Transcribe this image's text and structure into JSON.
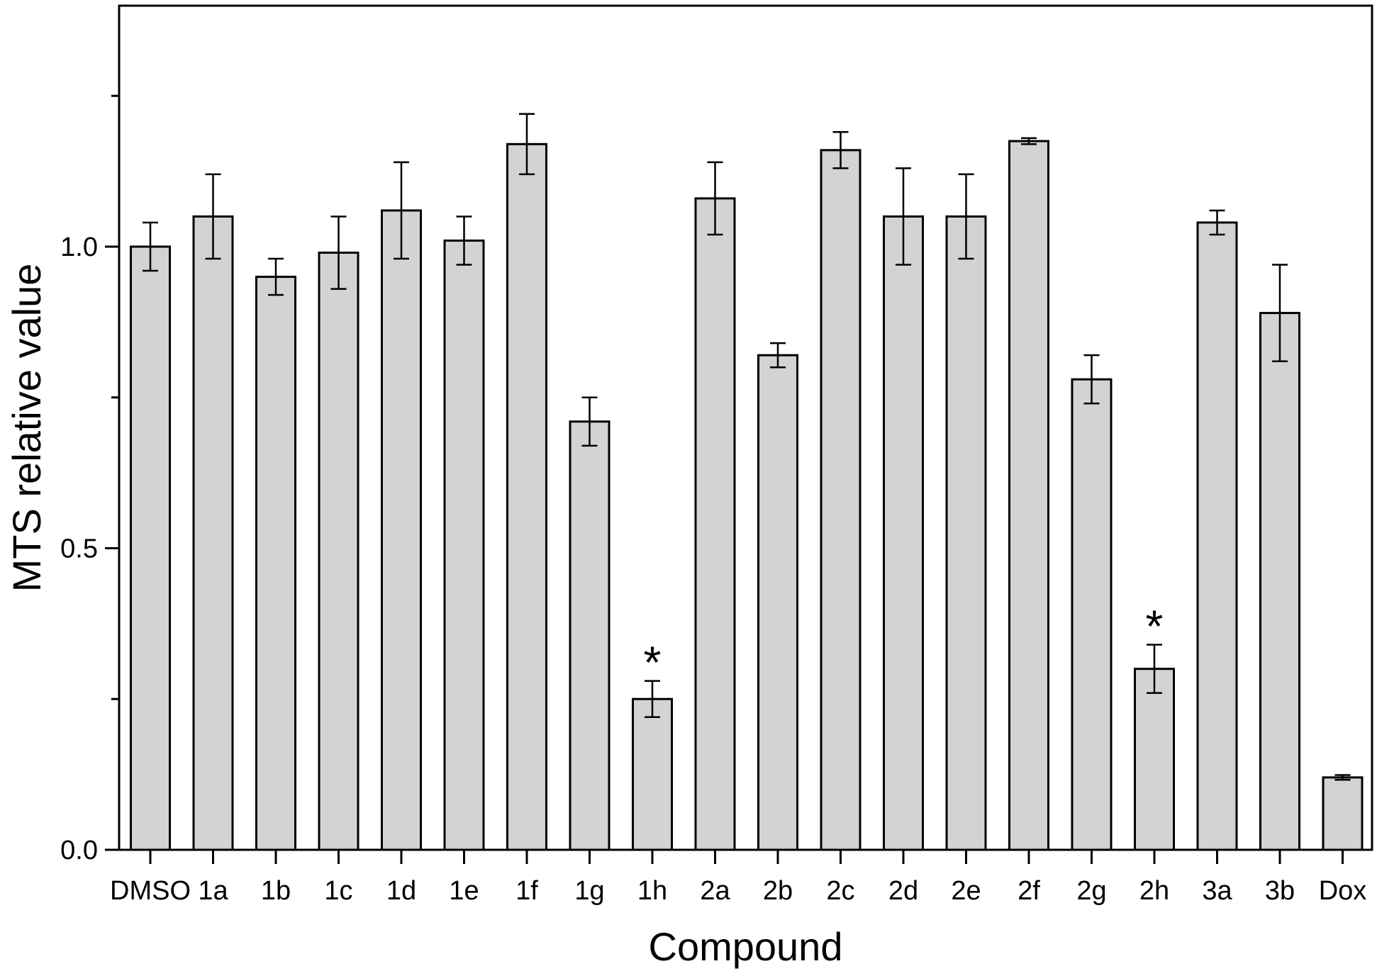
{
  "chart_data": {
    "type": "bar",
    "title": "",
    "xlabel": "Compound",
    "ylabel": "MTS relative value",
    "categories": [
      "DMSO",
      "1a",
      "1b",
      "1c",
      "1d",
      "1e",
      "1f",
      "1g",
      "1h",
      "2a",
      "2b",
      "2c",
      "2d",
      "2e",
      "2f",
      "2g",
      "2h",
      "3a",
      "3b",
      "Dox"
    ],
    "values": [
      1.0,
      1.05,
      0.95,
      0.99,
      1.06,
      1.01,
      1.17,
      0.71,
      0.25,
      1.08,
      0.82,
      1.16,
      1.05,
      1.05,
      1.175,
      0.78,
      0.3,
      1.04,
      0.89,
      0.12
    ],
    "errors": [
      0.04,
      0.07,
      0.03,
      0.06,
      0.08,
      0.04,
      0.05,
      0.04,
      0.03,
      0.06,
      0.02,
      0.03,
      0.08,
      0.07,
      0.005,
      0.04,
      0.04,
      0.02,
      0.08,
      0.004
    ],
    "significant": [
      "1h",
      "2h"
    ],
    "significance_marker": "*",
    "ylim": [
      0,
      1.4
    ],
    "yticks": [
      0.0,
      0.5,
      1.0
    ],
    "ytick_labels": [
      "0.0",
      "0.5",
      "1.0"
    ],
    "grid": false,
    "legend": "none",
    "bar_color": "#d3d3d3",
    "edge_color": "#000000"
  }
}
